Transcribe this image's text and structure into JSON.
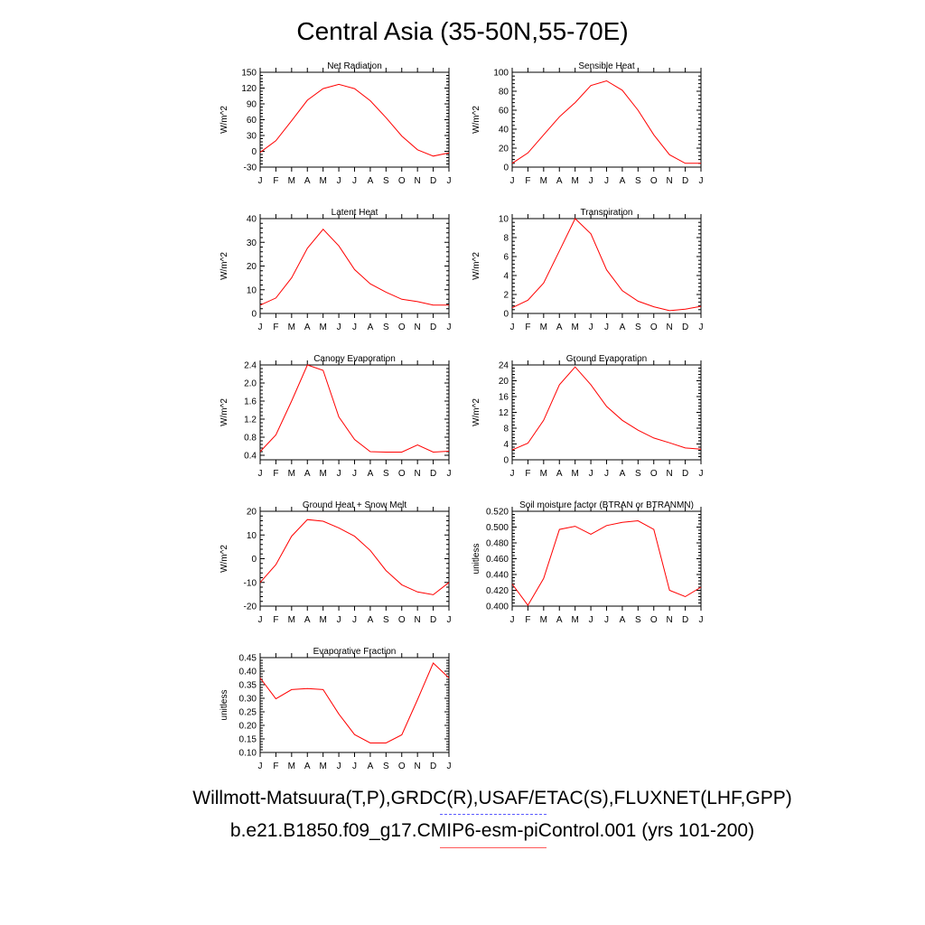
{
  "title": "Central Asia (35-50N,55-70E)",
  "captions": {
    "obs": "Willmott-Matsuura(T,P),GRDC(R),USAF/ETAC(S),FLUXNET(LHF,GPP)",
    "model": "b.e21.B1850.f09_g17.CMIP6-esm-piControl.001 (yrs 101-200)"
  },
  "colors": {
    "model_line": "#ff0000",
    "obs_line": "#5b5bff"
  },
  "chart_data": [
    {
      "type": "line",
      "title": "Net Radiation",
      "xlabel": "",
      "ylabel": "W/m^2",
      "categories": [
        "J",
        "F",
        "M",
        "A",
        "M",
        "J",
        "J",
        "A",
        "S",
        "O",
        "N",
        "D",
        "J"
      ],
      "yticks": [
        "-30",
        "0",
        "30",
        "60",
        "90",
        "120",
        "150"
      ],
      "ylim": [
        -30,
        150
      ],
      "series": [
        {
          "values": [
            -2,
            20,
            58,
            97,
            119,
            127,
            119,
            96,
            64,
            29,
            3,
            -9,
            -3
          ]
        }
      ]
    },
    {
      "type": "line",
      "title": "Sensible Heat",
      "xlabel": "",
      "ylabel": "W/m^2",
      "categories": [
        "J",
        "F",
        "M",
        "A",
        "M",
        "J",
        "J",
        "A",
        "S",
        "O",
        "N",
        "D",
        "J"
      ],
      "yticks": [
        "0",
        "20",
        "40",
        "60",
        "80",
        "100"
      ],
      "ylim": [
        0,
        100
      ],
      "series": [
        {
          "values": [
            4,
            15,
            34,
            53,
            68,
            86,
            91,
            81,
            60,
            34,
            13,
            4,
            4
          ]
        }
      ]
    },
    {
      "type": "line",
      "title": "Latent Heat",
      "xlabel": "",
      "ylabel": "W/m^2",
      "categories": [
        "J",
        "F",
        "M",
        "A",
        "M",
        "J",
        "J",
        "A",
        "S",
        "O",
        "N",
        "D",
        "J"
      ],
      "yticks": [
        "0",
        "10",
        "20",
        "30",
        "40"
      ],
      "ylim": [
        0,
        40
      ],
      "series": [
        {
          "values": [
            3.5,
            6.5,
            15,
            27.5,
            35.5,
            28.5,
            18.5,
            12.5,
            9,
            6,
            5,
            3.5,
            3.5
          ]
        }
      ]
    },
    {
      "type": "line",
      "title": "Transpiration",
      "xlabel": "",
      "ylabel": "W/m^2",
      "categories": [
        "J",
        "F",
        "M",
        "A",
        "M",
        "J",
        "J",
        "A",
        "S",
        "O",
        "N",
        "D",
        "J"
      ],
      "yticks": [
        "0",
        "2",
        "4",
        "6",
        "8",
        "10"
      ],
      "ylim": [
        0,
        10
      ],
      "series": [
        {
          "values": [
            0.6,
            1.4,
            3.2,
            6.6,
            10,
            8.4,
            4.6,
            2.4,
            1.3,
            0.7,
            0.3,
            0.45,
            0.75
          ]
        }
      ]
    },
    {
      "type": "line",
      "title": "Canopy Evaporation",
      "xlabel": "",
      "ylabel": "W/m^2",
      "categories": [
        "J",
        "F",
        "M",
        "A",
        "M",
        "J",
        "J",
        "A",
        "S",
        "O",
        "N",
        "D",
        "J"
      ],
      "yticks": [
        "0.4",
        "0.8",
        "1.2",
        "1.6",
        "2.0",
        "2.4"
      ],
      "ylim": [
        0.3,
        2.4
      ],
      "series": [
        {
          "values": [
            0.48,
            0.85,
            1.6,
            2.4,
            2.28,
            1.25,
            0.75,
            0.48,
            0.47,
            0.47,
            0.63,
            0.47,
            0.49
          ]
        }
      ]
    },
    {
      "type": "line",
      "title": "Ground Evaporation",
      "xlabel": "",
      "ylabel": "W/m^2",
      "categories": [
        "J",
        "F",
        "M",
        "A",
        "M",
        "J",
        "J",
        "A",
        "S",
        "O",
        "N",
        "D",
        "J"
      ],
      "yticks": [
        "0",
        "4",
        "8",
        "12",
        "16",
        "20",
        "24"
      ],
      "ylim": [
        0,
        24
      ],
      "series": [
        {
          "values": [
            2.5,
            4.2,
            10,
            19,
            23.5,
            19,
            13.5,
            10,
            7.5,
            5.5,
            4.3,
            3,
            2.7
          ]
        }
      ]
    },
    {
      "type": "line",
      "title": "Ground Heat + Snow Melt",
      "xlabel": "",
      "ylabel": "W/m^2",
      "categories": [
        "J",
        "F",
        "M",
        "A",
        "M",
        "J",
        "J",
        "A",
        "S",
        "O",
        "N",
        "D",
        "J"
      ],
      "yticks": [
        "-20",
        "-10",
        "0",
        "10",
        "20"
      ],
      "ylim": [
        -20,
        20
      ],
      "series": [
        {
          "values": [
            -10,
            -2.5,
            9.5,
            16.5,
            15.8,
            13,
            9.5,
            3.5,
            -5,
            -11,
            -14,
            -15.2,
            -10
          ]
        }
      ]
    },
    {
      "type": "line",
      "title": "Soil moisture factor (BTRAN or BTRANMN)",
      "xlabel": "",
      "ylabel": "unitless",
      "categories": [
        "J",
        "F",
        "M",
        "A",
        "M",
        "J",
        "J",
        "A",
        "S",
        "O",
        "N",
        "D",
        "J"
      ],
      "yticks": [
        "0.400",
        "0.420",
        "0.440",
        "0.460",
        "0.480",
        "0.500",
        "0.520"
      ],
      "ylim": [
        0.4,
        0.52
      ],
      "series": [
        {
          "values": [
            0.428,
            0.401,
            0.435,
            0.497,
            0.501,
            0.491,
            0.502,
            0.506,
            0.508,
            0.497,
            0.42,
            0.412,
            0.424
          ]
        }
      ]
    },
    {
      "type": "line",
      "title": "Evaporative Fraction",
      "xlabel": "",
      "ylabel": "unitless",
      "categories": [
        "J",
        "F",
        "M",
        "A",
        "M",
        "J",
        "J",
        "A",
        "S",
        "O",
        "N",
        "D",
        "J"
      ],
      "yticks": [
        "0.10",
        "0.15",
        "0.20",
        "0.25",
        "0.30",
        "0.35",
        "0.40",
        "0.45"
      ],
      "ylim": [
        0.1,
        0.45
      ],
      "series": [
        {
          "values": [
            0.375,
            0.298,
            0.332,
            0.336,
            0.332,
            0.242,
            0.166,
            0.135,
            0.135,
            0.165,
            0.295,
            0.43,
            0.375
          ]
        }
      ]
    }
  ]
}
